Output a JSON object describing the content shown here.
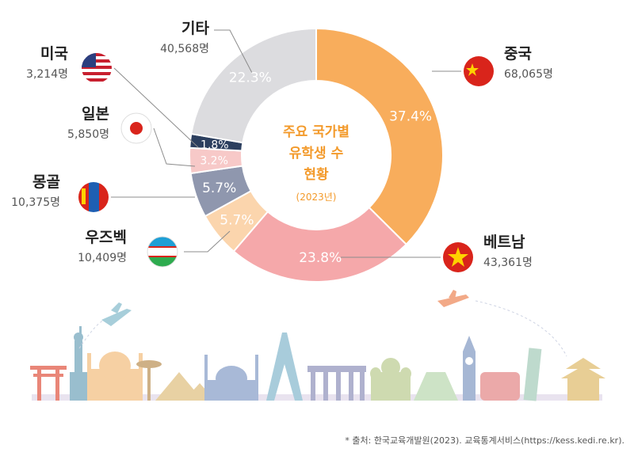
{
  "chart_data": {
    "type": "pie",
    "title": "주요 국가별 유학생 수 현황",
    "title_lines": [
      "주요 국가별",
      "유학생 수",
      "현황"
    ],
    "subtitle": "(2023년)",
    "slices": [
      {
        "label": "중국",
        "value": 68065,
        "value_label": "68,065명",
        "percent": 37.4,
        "pct_label": "37.4%",
        "color": "#f8ad5c"
      },
      {
        "label": "베트남",
        "value": 43361,
        "value_label": "43,361명",
        "percent": 23.8,
        "pct_label": "23.8%",
        "color": "#f5a8aa"
      },
      {
        "label": "우즈벡",
        "value": 10409,
        "value_label": "10,409명",
        "percent": 5.7,
        "pct_label": "5.7%",
        "color": "#fbd5ad"
      },
      {
        "label": "몽골",
        "value": 10375,
        "value_label": "10,375명",
        "percent": 5.7,
        "pct_label": "5.7%",
        "color": "#8f97ae"
      },
      {
        "label": "일본",
        "value": 5850,
        "value_label": "5,850명",
        "percent": 3.2,
        "pct_label": "3.2%",
        "color": "#f7c9c8"
      },
      {
        "label": "미국",
        "value": 3214,
        "value_label": "3,214명",
        "percent": 1.8,
        "pct_label": "1.8%",
        "color": "#2c3f5f"
      },
      {
        "label": "기타",
        "value": 40568,
        "value_label": "40,568명",
        "percent": 22.3,
        "pct_label": "22.3%",
        "color": "#dcdcdf"
      }
    ]
  },
  "source": "* 출처: 한국교육개발원(2023). 교육통계서비스(https://kess.kedi.re.kr)."
}
